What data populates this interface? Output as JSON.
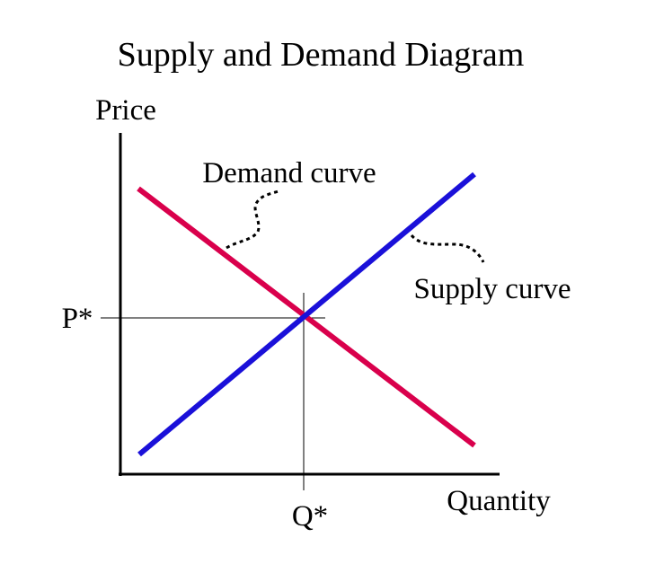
{
  "title": "Supply and Demand Diagram",
  "axes": {
    "y_label": "Price",
    "x_label": "Quantity"
  },
  "equilibrium": {
    "price_label": "P*",
    "quantity_label": "Q*"
  },
  "curves": {
    "demand": {
      "label": "Demand curve",
      "color": "#d9004c"
    },
    "supply": {
      "label": "Supply curve",
      "color": "#1a10d9"
    }
  },
  "colors": {
    "axis": "#000000",
    "guide": "#000000"
  }
}
